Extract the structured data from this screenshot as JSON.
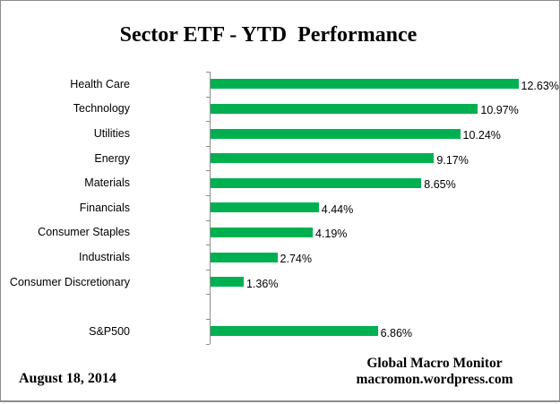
{
  "title": "Sector ETF - YTD  Performance",
  "chart_data": {
    "type": "bar",
    "orientation": "horizontal",
    "title": "Sector ETF - YTD  Performance",
    "categories": [
      "Health Care",
      "Technology",
      "Utilities",
      "Energy",
      "Materials",
      "Financials",
      "Consumer Staples",
      "Industrials",
      "Consumer Discretionary",
      "",
      "S&P500"
    ],
    "values": [
      12.63,
      10.97,
      10.24,
      9.17,
      8.65,
      4.44,
      4.19,
      2.74,
      1.36,
      null,
      6.86
    ],
    "value_labels": [
      "12.63%",
      "10.97%",
      "10.24%",
      "9.17%",
      "8.65%",
      "4.44%",
      "4.19%",
      "2.74%",
      "1.36%",
      "",
      "6.86%"
    ],
    "xlabel": "",
    "ylabel": "",
    "xlim": [
      0,
      14
    ],
    "grid": false,
    "legend": false,
    "bar_color": "#00b050",
    "axis_color": "#8c8c8c"
  },
  "footer": {
    "date": "August 18, 2014",
    "source_line1": "Global Macro Monitor",
    "source_line2": "macromon.wordpress.com"
  }
}
